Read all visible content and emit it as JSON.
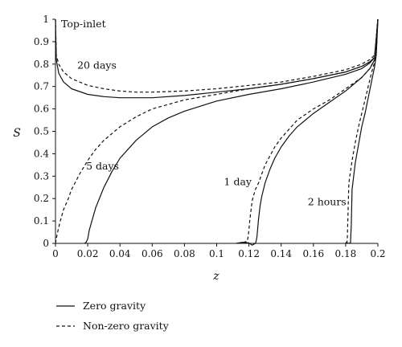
{
  "chart_data": {
    "type": "line",
    "xlabel": "z",
    "ylabel": "S",
    "xlim": [
      0,
      0.2
    ],
    "ylim": [
      0,
      1
    ],
    "x_ticks": [
      0,
      0.02,
      0.04,
      0.06,
      0.08,
      0.1,
      0.12,
      0.14,
      0.16,
      0.18,
      0.2
    ],
    "x_tick_labels": [
      "0",
      "0.02",
      "0.04",
      "0.06",
      "0.08",
      "0.1",
      "0.12",
      "0.14",
      "0.16",
      "0.18",
      "0.2"
    ],
    "y_ticks": [
      0,
      0.1,
      0.2,
      0.3,
      0.4,
      0.5,
      0.6,
      0.7,
      0.8,
      0.9,
      1
    ],
    "y_tick_labels": [
      "0",
      "0.1",
      "0.2",
      "0.3",
      "0.4",
      "0.5",
      "0.6",
      "0.7",
      "0.8",
      "0.9",
      "1"
    ],
    "grid": false,
    "legend_position": "bottom-left, below plot",
    "legend": [
      {
        "label": "Zero gravity",
        "style": "solid"
      },
      {
        "label": "Non-zero gravity",
        "style": "dashed"
      }
    ],
    "annotations": [
      {
        "text": "Top-inlet",
        "x": 0.0035,
        "y": 0.965
      },
      {
        "text": "20 days",
        "x": 0.0135,
        "y": 0.78
      },
      {
        "text": "5 days",
        "x": 0.019,
        "y": 0.33
      },
      {
        "text": "1 day",
        "x": 0.1045,
        "y": 0.26
      },
      {
        "text": "2 hours",
        "x": 0.1565,
        "y": 0.17
      }
    ],
    "series": [
      {
        "group": "20 days",
        "style": "solid",
        "x": [
          0,
          0.0005,
          0.002,
          0.005,
          0.01,
          0.02,
          0.03,
          0.04,
          0.05,
          0.06,
          0.08,
          0.1,
          0.12,
          0.14,
          0.16,
          0.18,
          0.19,
          0.195,
          0.198,
          0.2
        ],
        "y": [
          1,
          0.82,
          0.76,
          0.72,
          0.69,
          0.665,
          0.655,
          0.65,
          0.65,
          0.65,
          0.66,
          0.675,
          0.69,
          0.71,
          0.735,
          0.765,
          0.79,
          0.81,
          0.83,
          1
        ]
      },
      {
        "group": "20 days",
        "style": "dashed",
        "x": [
          0,
          0.0005,
          0.002,
          0.005,
          0.01,
          0.02,
          0.03,
          0.04,
          0.05,
          0.06,
          0.08,
          0.1,
          0.12,
          0.14,
          0.16,
          0.18,
          0.19,
          0.195,
          0.198,
          0.2
        ],
        "y": [
          1,
          0.84,
          0.8,
          0.765,
          0.735,
          0.705,
          0.69,
          0.68,
          0.675,
          0.675,
          0.68,
          0.69,
          0.705,
          0.72,
          0.745,
          0.775,
          0.8,
          0.82,
          0.84,
          1
        ]
      },
      {
        "group": "5 days",
        "style": "solid",
        "x": [
          0.018,
          0.019,
          0.02,
          0.021,
          0.023,
          0.025,
          0.03,
          0.035,
          0.04,
          0.05,
          0.06,
          0.07,
          0.08,
          0.1,
          0.12,
          0.14,
          0.16,
          0.18,
          0.19,
          0.195,
          0.198,
          0.2
        ],
        "y": [
          0,
          0.005,
          0.02,
          0.06,
          0.11,
          0.16,
          0.25,
          0.32,
          0.38,
          0.46,
          0.52,
          0.56,
          0.59,
          0.635,
          0.665,
          0.69,
          0.72,
          0.755,
          0.78,
          0.805,
          0.83,
          1
        ]
      },
      {
        "group": "5 days",
        "style": "dashed",
        "x": [
          0,
          0.001,
          0.003,
          0.005,
          0.008,
          0.01,
          0.015,
          0.02,
          0.025,
          0.03,
          0.04,
          0.05,
          0.06,
          0.08,
          0.1,
          0.12,
          0.14,
          0.16,
          0.18,
          0.19,
          0.195,
          0.198,
          0.2
        ],
        "y": [
          0,
          0.04,
          0.1,
          0.15,
          0.2,
          0.24,
          0.31,
          0.37,
          0.42,
          0.46,
          0.52,
          0.565,
          0.6,
          0.64,
          0.665,
          0.69,
          0.71,
          0.735,
          0.765,
          0.79,
          0.81,
          0.83,
          1
        ]
      },
      {
        "group": "1 day",
        "style": "solid",
        "x": [
          0.112,
          0.116,
          0.12,
          0.122,
          0.124,
          0.1245,
          0.125,
          0.1255,
          0.126,
          0.127,
          0.128,
          0.13,
          0.133,
          0.136,
          0.14,
          0.145,
          0.15,
          0.16,
          0.17,
          0.18,
          0.19,
          0.195,
          0.198,
          0.2
        ],
        "y": [
          0,
          0.005,
          0.002,
          -0.008,
          0,
          0.01,
          0.03,
          0.07,
          0.11,
          0.17,
          0.21,
          0.27,
          0.33,
          0.38,
          0.43,
          0.48,
          0.52,
          0.58,
          0.63,
          0.68,
          0.74,
          0.78,
          0.82,
          1
        ]
      },
      {
        "group": "1 day",
        "style": "dashed",
        "x": [
          0.113,
          0.117,
          0.119,
          0.1195,
          0.12,
          0.1205,
          0.121,
          0.122,
          0.124,
          0.126,
          0.128,
          0.13,
          0.133,
          0.136,
          0.14,
          0.145,
          0.15,
          0.16,
          0.17,
          0.18,
          0.19,
          0.195,
          0.198,
          0.2
        ],
        "y": [
          0,
          0.005,
          0.01,
          0.03,
          0.06,
          0.1,
          0.13,
          0.19,
          0.24,
          0.27,
          0.31,
          0.35,
          0.39,
          0.43,
          0.47,
          0.51,
          0.55,
          0.6,
          0.64,
          0.69,
          0.74,
          0.78,
          0.82,
          1
        ]
      },
      {
        "group": "2 hours",
        "style": "solid",
        "x": [
          0.18,
          0.181,
          0.182,
          0.183,
          0.1835,
          0.184,
          0.186,
          0.188,
          0.19,
          0.192,
          0.194,
          0.196,
          0.198,
          0.199,
          0.2
        ],
        "y": [
          0,
          0.003,
          0,
          0.002,
          0.08,
          0.24,
          0.36,
          0.44,
          0.52,
          0.58,
          0.65,
          0.72,
          0.79,
          0.84,
          1
        ]
      },
      {
        "group": "2 hours",
        "style": "dashed",
        "x": [
          0.18,
          0.181,
          0.1815,
          0.182,
          0.184,
          0.186,
          0.188,
          0.19,
          0.192,
          0.194,
          0.196,
          0.198,
          0.199,
          0.2
        ],
        "y": [
          0,
          0.01,
          0.14,
          0.27,
          0.37,
          0.45,
          0.52,
          0.58,
          0.64,
          0.7,
          0.76,
          0.81,
          0.85,
          1
        ]
      }
    ]
  }
}
